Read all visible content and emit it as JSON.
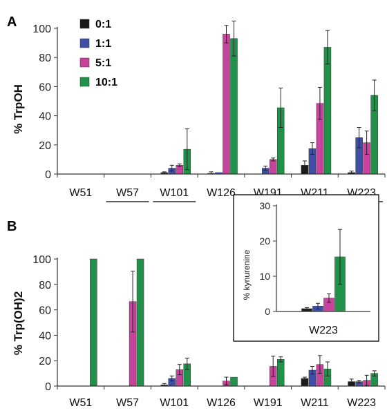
{
  "chart_data": [
    {
      "panel": "A",
      "type": "bar",
      "ylabel": "% TrpOH",
      "ylim": [
        0,
        100
      ],
      "yticks": [
        0,
        20,
        40,
        60,
        80,
        100
      ],
      "categories": [
        "W51",
        "W57",
        "W101",
        "W126",
        "W191",
        "W211",
        "W223"
      ],
      "underlined_categories": [
        "W57",
        "W101",
        "W211",
        "W223"
      ],
      "legend_position": "top-left",
      "series": [
        {
          "name": "0:1",
          "color": "#1a1a1a",
          "values": [
            0,
            0,
            1,
            0.5,
            0,
            6,
            1
          ],
          "errors": [
            0,
            0,
            0.5,
            1,
            0,
            3,
            1
          ]
        },
        {
          "name": "1:1",
          "color": "#3f4fa8",
          "values": [
            0,
            0,
            4,
            1,
            4,
            17.5,
            25
          ],
          "errors": [
            0,
            0,
            2,
            0,
            1.5,
            4,
            7
          ]
        },
        {
          "name": "5:1",
          "color": "#c6449c",
          "values": [
            0,
            0,
            6,
            96,
            10,
            48.5,
            21.5
          ],
          "errors": [
            0,
            0,
            1,
            6,
            1,
            11,
            8
          ]
        },
        {
          "name": "10:1",
          "color": "#22914a",
          "values": [
            0,
            0,
            17,
            93,
            45.5,
            87,
            54
          ],
          "errors": [
            0,
            0,
            14,
            12,
            13.5,
            11.5,
            10.5
          ]
        }
      ]
    },
    {
      "panel": "B",
      "type": "bar",
      "ylabel": "% Trp(OH)2",
      "ylim": [
        0,
        100
      ],
      "yticks": [
        0,
        20,
        40,
        60,
        80,
        100
      ],
      "categories": [
        "W51",
        "W57",
        "W101",
        "W126",
        "W191",
        "W211",
        "W223"
      ],
      "series": [
        {
          "name": "0:1",
          "color": "#1a1a1a",
          "values": [
            0,
            0,
            1,
            0,
            0,
            6,
            3.5
          ],
          "errors": [
            0,
            0,
            1,
            0,
            0,
            1,
            2
          ]
        },
        {
          "name": "1:1",
          "color": "#3f4fa8",
          "values": [
            0,
            0,
            6,
            0,
            0,
            12.5,
            3.5
          ],
          "errors": [
            0,
            0,
            2,
            0,
            0,
            3,
            1
          ]
        },
        {
          "name": "5:1",
          "color": "#c6449c",
          "values": [
            0,
            66.5,
            13,
            4,
            15.5,
            17,
            4.5
          ],
          "errors": [
            0,
            24,
            4,
            3,
            8,
            7,
            4
          ]
        },
        {
          "name": "10:1",
          "color": "#22914a",
          "values": [
            100,
            100,
            17.5,
            7,
            21,
            13.5,
            10
          ],
          "errors": [
            0,
            0,
            4.5,
            0,
            2,
            5.5,
            2
          ]
        }
      ]
    },
    {
      "panel": "B-inset",
      "type": "bar",
      "ylabel": "% kynurenine",
      "ylim": [
        0,
        30
      ],
      "yticks": [
        0,
        10,
        20,
        30
      ],
      "categories": [
        "W223"
      ],
      "series": [
        {
          "name": "0:1",
          "color": "#1a1a1a",
          "values": [
            0.8
          ],
          "errors": [
            0.3
          ]
        },
        {
          "name": "1:1",
          "color": "#3f4fa8",
          "values": [
            1.5
          ],
          "errors": [
            0.8
          ]
        },
        {
          "name": "5:1",
          "color": "#c6449c",
          "values": [
            3.8
          ],
          "errors": [
            1.2
          ]
        },
        {
          "name": "10:1",
          "color": "#22914a",
          "values": [
            15.5
          ],
          "errors": [
            7.8
          ]
        }
      ]
    }
  ]
}
